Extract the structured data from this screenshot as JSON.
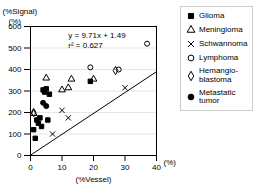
{
  "chart_data": {
    "type": "scatter",
    "ylabel": "(%Signal)",
    "ylabel_unit": "(%)",
    "xlabel": "(%Vessel)",
    "xlabel_unit": "(%)",
    "annotations": [
      "y = 9.71x + 1.49",
      "r² = 0.627"
    ],
    "xlim": [
      0,
      40
    ],
    "ylim": [
      0,
      600
    ],
    "xticks": [
      0,
      10,
      20,
      30,
      40
    ],
    "yticks": [
      0,
      100,
      200,
      300,
      400,
      500,
      600
    ],
    "grid": "y",
    "legend": "right",
    "regression_line": {
      "x": [
        0,
        40
      ],
      "values": [
        1.49,
        389.89
      ],
      "color": "black"
    },
    "series": [
      {
        "name": "Glioma",
        "marker": "square",
        "color": "black",
        "x": [
          1,
          1.5,
          2,
          2.5,
          3,
          3.5,
          4,
          4.5,
          5,
          5.5,
          6,
          19
        ],
        "values": [
          120,
          80,
          165,
          150,
          175,
          135,
          305,
          295,
          310,
          165,
          285,
          345
        ]
      },
      {
        "name": "Meningioma",
        "marker": "triangle-open",
        "color": "black",
        "x": [
          1,
          5,
          10,
          12,
          13,
          20
        ],
        "values": [
          195,
          360,
          305,
          315,
          355,
          355
        ]
      },
      {
        "name": "Schwannoma",
        "marker": "x",
        "color": "black",
        "x": [
          7,
          10,
          12,
          30
        ],
        "values": [
          100,
          210,
          175,
          315
        ]
      },
      {
        "name": "Lymphoma",
        "marker": "circle-open",
        "color": "black",
        "x": [
          19,
          28,
          37
        ],
        "values": [
          410,
          400,
          520
        ]
      },
      {
        "name": "Hemangio-\nblastoma",
        "marker": "diamond-open",
        "color": "black",
        "x": [
          1,
          27
        ],
        "values": [
          200,
          395
        ]
      },
      {
        "name": "Metastatic\ntumor",
        "marker": "circle",
        "color": "black",
        "x": [
          4,
          5
        ],
        "values": [
          245,
          230
        ]
      }
    ]
  }
}
